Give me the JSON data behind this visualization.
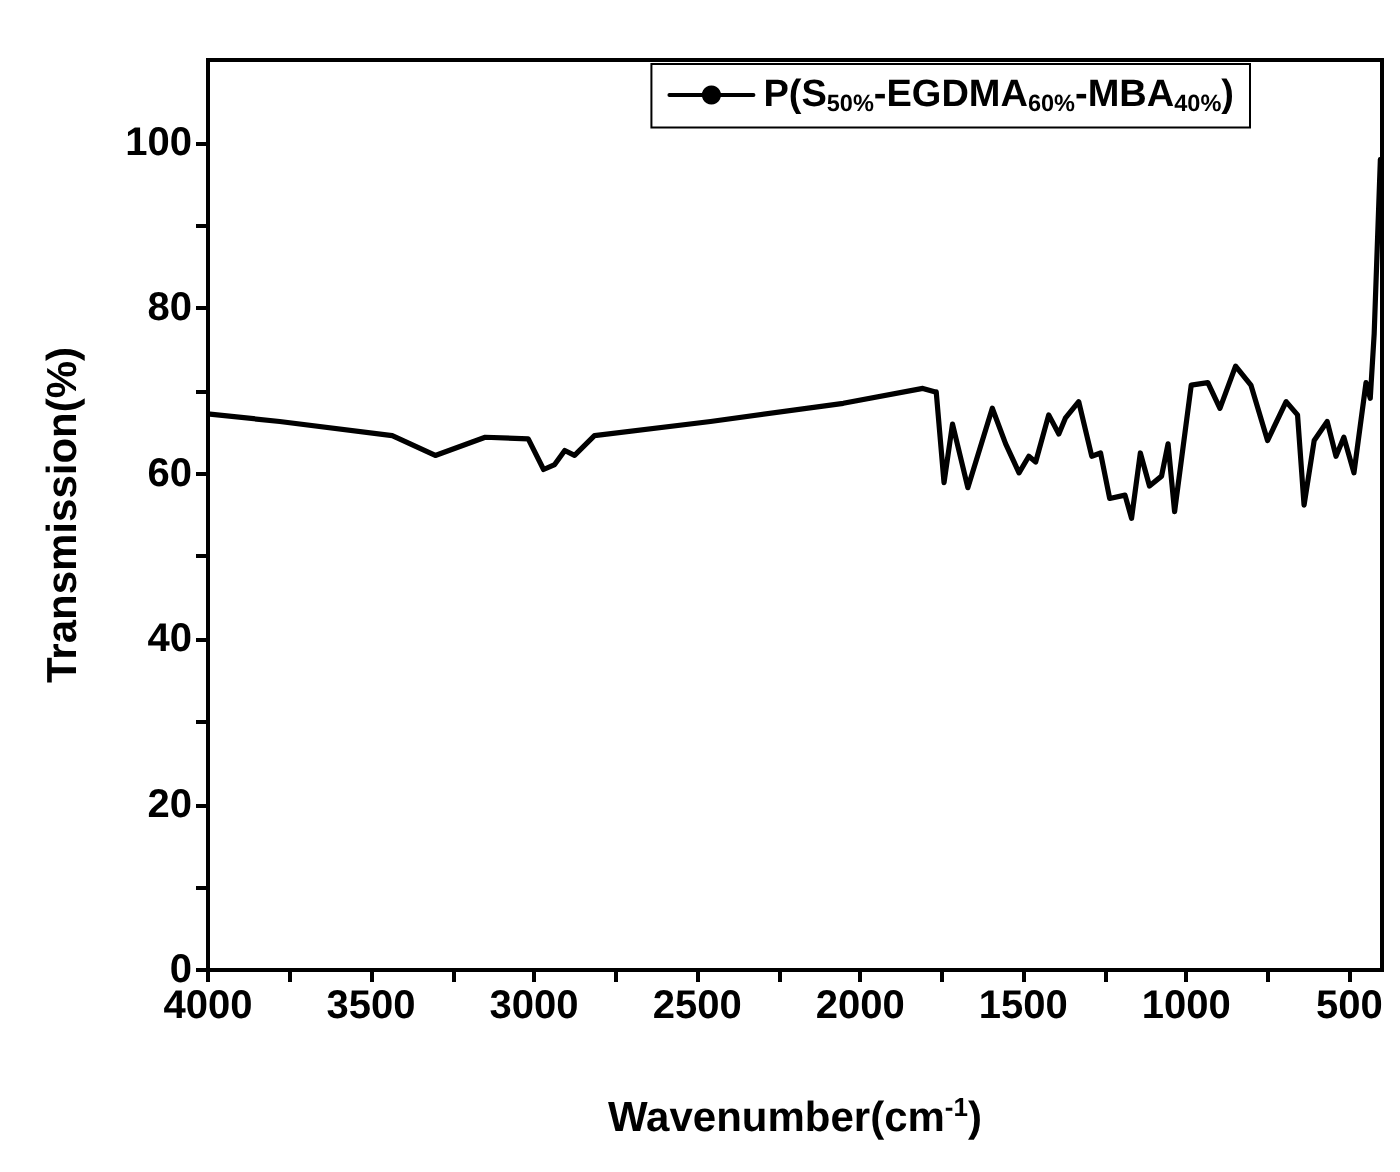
{
  "chart_data": {
    "type": "line",
    "xlabel": "Wavenumber(cm$^{-1}$)",
    "ylabel": "Transmission(%)",
    "xlim": [
      4000,
      400
    ],
    "ylim": [
      0,
      110
    ],
    "xticks": [
      4000,
      {
        "value": 3750,
        "label": null
      },
      3500,
      {
        "value": 3250,
        "label": null
      },
      3000,
      {
        "value": 2750,
        "label": null
      },
      2500,
      {
        "value": 2250,
        "label": null
      },
      2000,
      {
        "value": 1750,
        "label": null
      },
      1500,
      {
        "value": 1250,
        "label": null
      },
      1000,
      {
        "value": 750,
        "label": null
      },
      500
    ],
    "yticks": [
      0,
      {
        "value": 10,
        "label": null
      },
      20,
      {
        "value": 30,
        "label": null
      },
      40,
      {
        "value": 50,
        "label": null
      },
      60,
      {
        "value": 70,
        "label": null
      },
      80,
      {
        "value": 90,
        "label": null
      },
      100
    ],
    "legend": "top right",
    "grid": false,
    "line_style": "solid",
    "series": [
      {
        "name": "P(S$_{50%}$-EGDMA$_{60%}$-MBA$_{40%}$)",
        "color": "#000000",
        "x": [
          3994,
          3780,
          3435,
          3303,
          3150,
          3018,
          2971,
          2937,
          2906,
          2876,
          2815,
          2459,
          2052,
          1808,
          1772,
          1767,
          1743,
          1717,
          1670,
          1595,
          1554,
          1513,
          1483,
          1462,
          1422,
          1391,
          1371,
          1330,
          1290,
          1263,
          1235,
          1188,
          1168,
          1141,
          1113,
          1076,
          1056,
          1036,
          985,
          934,
          897,
          849,
          802,
          751,
          694,
          659,
          639,
          608,
          568,
          541,
          517,
          486,
          449,
          436,
          424,
          405
        ],
        "values": [
          67.2,
          66.3,
          64.6,
          62.2,
          64.4,
          64.2,
          60.5,
          61.1,
          62.8,
          62.2,
          64.6,
          66.3,
          68.5,
          70.3,
          69.9,
          69.9,
          58.9,
          66.0,
          58.3,
          67.9,
          63.6,
          60.1,
          62.1,
          61.4,
          67.1,
          64.8,
          66.7,
          68.7,
          62.1,
          62.5,
          57.0,
          57.4,
          54.6,
          62.5,
          58.5,
          59.7,
          63.6,
          55.4,
          70.7,
          71.0,
          67.9,
          73.0,
          70.7,
          64.0,
          68.7,
          67.1,
          56.2,
          64.0,
          66.3,
          62.1,
          64.4,
          60.1,
          71.0,
          69.1,
          76.9,
          98
        ]
      }
    ]
  }
}
